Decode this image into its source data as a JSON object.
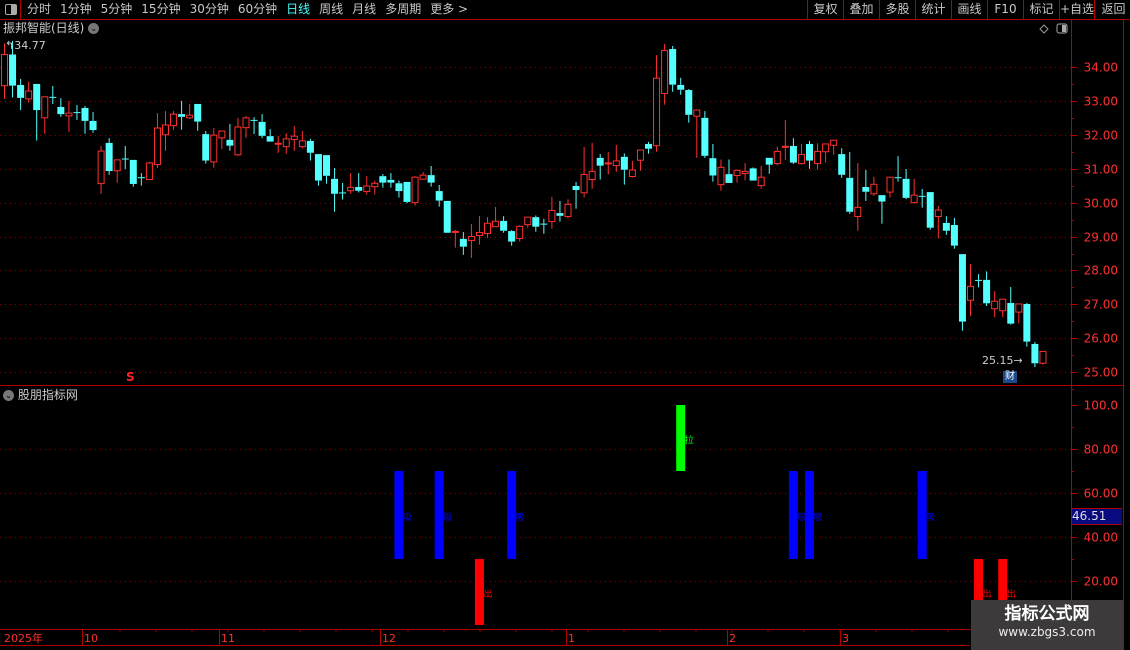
{
  "toolbar": {
    "periods": [
      "分时",
      "1分钟",
      "5分钟",
      "15分钟",
      "30分钟",
      "60分钟",
      "日线",
      "周线",
      "月线",
      "多周期",
      "更多 >"
    ],
    "active_period": "日线",
    "right_buttons": [
      "复权",
      "叠加",
      "多股",
      "统计",
      "画线",
      "F10",
      "标记",
      "+自选",
      "返回"
    ]
  },
  "chart": {
    "title": "振邦智能(日线)",
    "high_label": "34.77",
    "low_label": "25.15",
    "finance_badge": "财",
    "signal_mark": "S"
  },
  "indicator": {
    "title": "股朋指标网",
    "cursor_value": "46.51"
  },
  "watermark": {
    "name": "指标公式网",
    "url": "www.zbgs3.com"
  },
  "colors": {
    "up": "#ff3030",
    "down": "#54ffff",
    "grid": "#8b0000",
    "axis": "#ff3030",
    "blue_signal": "#0000ff",
    "green_signal": "#00ff00",
    "red_signal": "#ff0000"
  },
  "chart_data": [
    {
      "type": "candlestick",
      "y_ticks": [
        "34.00",
        "33.00",
        "32.00",
        "31.00",
        "30.00",
        "29.00",
        "28.00",
        "27.00",
        "26.00",
        "25.00"
      ],
      "ylim": [
        24.7,
        35.4
      ],
      "x_labels": [
        "2025年",
        "10",
        "11",
        "12",
        "1",
        "2",
        "3"
      ],
      "grid": true,
      "candles_ohlc": [
        [
          33.45,
          34.7,
          33.06,
          34.37
        ],
        [
          34.37,
          34.77,
          33.1,
          33.45
        ],
        [
          33.47,
          33.65,
          32.73,
          33.09
        ],
        [
          33.06,
          33.57,
          32.95,
          33.29
        ],
        [
          33.5,
          33.5,
          31.83,
          32.73
        ],
        [
          32.5,
          33.12,
          32.03,
          33.12
        ],
        [
          33.12,
          33.44,
          32.91,
          33.1
        ],
        [
          32.82,
          33.08,
          32.53,
          32.61
        ],
        [
          32.56,
          33.0,
          32.09,
          32.64
        ],
        [
          32.67,
          32.88,
          32.44,
          32.66
        ],
        [
          32.79,
          32.85,
          32.03,
          32.41
        ],
        [
          32.41,
          32.67,
          32.06,
          32.14
        ],
        [
          30.56,
          31.67,
          30.26,
          31.52
        ],
        [
          31.76,
          31.9,
          30.82,
          30.93
        ],
        [
          30.94,
          31.26,
          30.59,
          31.26
        ],
        [
          31.3,
          31.67,
          30.99,
          31.28
        ],
        [
          31.26,
          31.26,
          30.47,
          30.55
        ],
        [
          30.75,
          30.87,
          30.5,
          30.73
        ],
        [
          30.68,
          31.2,
          30.68,
          31.17
        ],
        [
          31.12,
          32.64,
          31.02,
          32.2
        ],
        [
          32.0,
          32.7,
          31.53,
          32.29
        ],
        [
          32.27,
          32.7,
          32.15,
          32.61
        ],
        [
          32.61,
          33.0,
          32.15,
          32.53
        ],
        [
          32.5,
          32.91,
          32.47,
          32.58
        ],
        [
          32.91,
          32.91,
          32.12,
          32.39
        ],
        [
          32.02,
          32.11,
          31.15,
          31.24
        ],
        [
          31.2,
          32.2,
          31.03,
          31.99
        ],
        [
          31.91,
          32.11,
          31.58,
          32.11
        ],
        [
          31.85,
          32.32,
          31.53,
          31.68
        ],
        [
          31.41,
          32.5,
          31.38,
          32.23
        ],
        [
          32.21,
          32.55,
          31.91,
          32.5
        ],
        [
          32.44,
          32.52,
          32.02,
          32.42
        ],
        [
          32.38,
          32.61,
          31.9,
          31.97
        ],
        [
          31.96,
          32.17,
          31.8,
          31.8
        ],
        [
          31.73,
          31.96,
          31.47,
          31.75
        ],
        [
          31.65,
          32.05,
          31.44,
          31.88
        ],
        [
          31.86,
          32.26,
          31.53,
          31.96
        ],
        [
          31.65,
          32.11,
          31.6,
          31.82
        ],
        [
          31.82,
          31.88,
          31.24,
          31.47
        ],
        [
          31.43,
          31.43,
          30.5,
          30.65
        ],
        [
          31.4,
          31.4,
          30.56,
          30.79
        ],
        [
          30.7,
          31.02,
          29.73,
          30.26
        ],
        [
          30.3,
          30.58,
          30.09,
          30.28
        ],
        [
          30.35,
          30.87,
          30.26,
          30.45
        ],
        [
          30.46,
          30.87,
          30.3,
          30.35
        ],
        [
          30.33,
          30.78,
          30.24,
          30.49
        ],
        [
          30.47,
          30.65,
          30.24,
          30.57
        ],
        [
          30.78,
          30.84,
          30.44,
          30.59
        ],
        [
          30.67,
          30.87,
          30.44,
          30.59
        ],
        [
          30.57,
          30.65,
          30.15,
          30.34
        ],
        [
          30.61,
          30.61,
          29.98,
          30.02
        ],
        [
          30.0,
          30.78,
          29.91,
          30.75
        ],
        [
          30.69,
          30.9,
          30.69,
          30.81
        ],
        [
          30.81,
          31.08,
          30.47,
          30.59
        ],
        [
          30.34,
          30.52,
          29.88,
          30.06
        ],
        [
          30.05,
          30.05,
          29.11,
          29.11
        ],
        [
          29.13,
          29.19,
          28.67,
          29.15
        ],
        [
          28.93,
          29.13,
          28.46,
          28.7
        ],
        [
          28.88,
          29.37,
          28.37,
          29.0
        ],
        [
          29.03,
          29.6,
          28.76,
          29.12
        ],
        [
          29.09,
          29.57,
          28.96,
          29.39
        ],
        [
          29.29,
          29.87,
          29.29,
          29.45
        ],
        [
          29.46,
          29.6,
          29.11,
          29.17
        ],
        [
          29.16,
          29.19,
          28.73,
          28.85
        ],
        [
          28.94,
          29.33,
          28.85,
          29.3
        ],
        [
          29.35,
          29.57,
          29.26,
          29.57
        ],
        [
          29.57,
          29.62,
          29.14,
          29.29
        ],
        [
          29.38,
          29.52,
          29.08,
          29.36
        ],
        [
          29.44,
          30.17,
          29.23,
          29.77
        ],
        [
          29.69,
          30.05,
          29.44,
          29.61
        ],
        [
          29.59,
          30.1,
          29.53,
          29.95
        ],
        [
          30.49,
          30.61,
          29.82,
          30.37
        ],
        [
          30.29,
          31.64,
          30.15,
          30.83
        ],
        [
          30.68,
          31.76,
          30.41,
          30.92
        ],
        [
          31.32,
          31.43,
          30.68,
          31.09
        ],
        [
          31.15,
          31.49,
          30.83,
          31.17
        ],
        [
          31.09,
          31.7,
          30.91,
          31.23
        ],
        [
          31.35,
          31.45,
          30.53,
          30.97
        ],
        [
          30.77,
          31.23,
          30.74,
          30.96
        ],
        [
          31.25,
          31.55,
          30.94,
          31.55
        ],
        [
          31.73,
          31.79,
          31.44,
          31.59
        ],
        [
          31.68,
          34.35,
          31.5,
          33.67
        ],
        [
          33.22,
          34.68,
          32.89,
          34.49
        ],
        [
          34.53,
          34.62,
          33.27,
          33.48
        ],
        [
          33.47,
          33.68,
          33.18,
          33.33
        ],
        [
          33.32,
          33.35,
          32.36,
          32.59
        ],
        [
          32.55,
          32.75,
          31.32,
          32.73
        ],
        [
          32.5,
          32.7,
          31.32,
          31.38
        ],
        [
          31.31,
          31.73,
          30.62,
          30.8
        ],
        [
          30.53,
          31.27,
          30.35,
          31.04
        ],
        [
          30.84,
          31.27,
          30.58,
          30.58
        ],
        [
          30.8,
          30.98,
          30.59,
          30.95
        ],
        [
          30.86,
          31.17,
          30.66,
          30.92
        ],
        [
          31.01,
          31.04,
          30.65,
          30.65
        ],
        [
          30.5,
          31.08,
          30.41,
          30.75
        ],
        [
          31.32,
          31.32,
          30.85,
          31.12
        ],
        [
          31.15,
          31.65,
          31.1,
          31.51
        ],
        [
          31.64,
          32.44,
          31.26,
          31.66
        ],
        [
          31.67,
          31.9,
          31.14,
          31.18
        ],
        [
          31.15,
          31.73,
          31.12,
          31.42
        ],
        [
          31.73,
          31.82,
          31.0,
          31.24
        ],
        [
          31.15,
          31.75,
          30.97,
          31.51
        ],
        [
          31.5,
          31.73,
          31.18,
          31.73
        ],
        [
          31.69,
          31.86,
          31.41,
          31.84
        ],
        [
          31.43,
          31.6,
          30.73,
          30.82
        ],
        [
          30.73,
          31.49,
          29.67,
          29.73
        ],
        [
          29.59,
          31.17,
          29.17,
          29.86
        ],
        [
          30.46,
          30.96,
          30.05,
          30.32
        ],
        [
          30.26,
          30.76,
          30.2,
          30.54
        ],
        [
          30.22,
          30.22,
          29.38,
          30.03
        ],
        [
          30.31,
          30.75,
          30.15,
          30.75
        ],
        [
          30.75,
          31.37,
          30.62,
          30.73
        ],
        [
          30.7,
          30.99,
          30.1,
          30.14
        ],
        [
          30.0,
          30.7,
          29.97,
          30.22
        ],
        [
          30.2,
          30.4,
          29.85,
          30.18
        ],
        [
          30.31,
          30.31,
          29.2,
          29.26
        ],
        [
          29.59,
          29.9,
          28.94,
          29.78
        ],
        [
          29.4,
          29.6,
          29.05,
          29.17
        ],
        [
          29.34,
          29.55,
          28.64,
          28.73
        ],
        [
          28.48,
          28.48,
          26.22,
          26.49
        ],
        [
          27.12,
          28.19,
          26.66,
          27.53
        ],
        [
          27.72,
          27.89,
          27.5,
          27.7
        ],
        [
          27.72,
          27.97,
          26.95,
          27.03
        ],
        [
          26.87,
          27.39,
          26.62,
          27.09
        ],
        [
          26.81,
          27.15,
          26.62,
          27.15
        ],
        [
          27.04,
          27.51,
          26.4,
          26.43
        ],
        [
          26.77,
          27.01,
          26.44,
          27.01
        ],
        [
          27.01,
          27.04,
          25.75,
          25.9
        ],
        [
          25.83,
          25.89,
          25.15,
          25.26
        ],
        [
          25.26,
          25.61,
          25.22,
          25.61
        ]
      ]
    },
    {
      "type": "bar",
      "y_ticks": [
        "100.0",
        "80.00",
        "60.00",
        "40.00",
        "20.00"
      ],
      "ylim": [
        -10,
        108
      ],
      "grid": true,
      "signals": [
        {
          "bar_index": 49,
          "from": 30,
          "to": 70,
          "color": "blue",
          "label": "吸"
        },
        {
          "bar_index": 54,
          "from": 30,
          "to": 70,
          "color": "blue",
          "label": "吸"
        },
        {
          "bar_index": 59,
          "from": 0,
          "to": 30,
          "color": "red",
          "label": "出"
        },
        {
          "bar_index": 63,
          "from": 30,
          "to": 70,
          "color": "blue",
          "label": "吸"
        },
        {
          "bar_index": 84,
          "from": 70,
          "to": 100,
          "color": "green",
          "label": "拉"
        },
        {
          "bar_index": 98,
          "from": 30,
          "to": 70,
          "color": "blue",
          "label": "吸"
        },
        {
          "bar_index": 100,
          "from": 30,
          "to": 70,
          "color": "blue",
          "label": "吸"
        },
        {
          "bar_index": 114,
          "from": 30,
          "to": 70,
          "color": "blue",
          "label": "吸"
        },
        {
          "bar_index": 121,
          "from": 0,
          "to": 30,
          "color": "red",
          "label": "出"
        },
        {
          "bar_index": 124,
          "from": 0,
          "to": 30,
          "color": "red",
          "label": "出"
        }
      ]
    }
  ]
}
